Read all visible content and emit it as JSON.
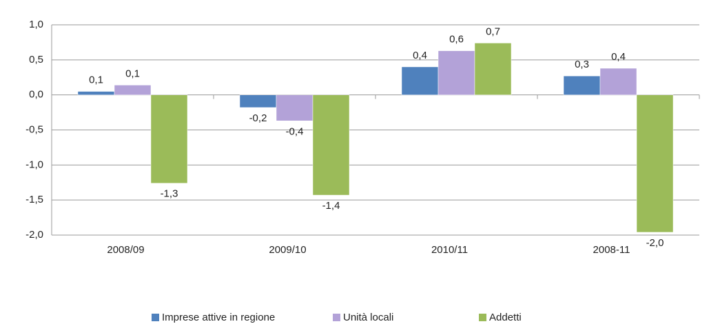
{
  "chart_data": {
    "type": "bar",
    "categories": [
      "2008/09",
      "2009/10",
      "2010/11",
      "2008-11"
    ],
    "series": [
      {
        "name": "Imprese attive in regione",
        "color": "#4f81bd",
        "values": [
          0.05,
          -0.18,
          0.4,
          0.27
        ],
        "value_labels": [
          "0,1",
          "-0,2",
          "0,4",
          "0,3"
        ]
      },
      {
        "name": "Unità locali",
        "color": "#b3a2d8",
        "values": [
          0.14,
          -0.37,
          0.63,
          0.38
        ],
        "value_labels": [
          "0,1",
          "-0,4",
          "0,6",
          "0,4"
        ]
      },
      {
        "name": "Addetti",
        "color": "#9bbb59",
        "values": [
          -1.26,
          -1.43,
          0.74,
          -1.96
        ],
        "value_labels": [
          "-1,3",
          "-1,4",
          "0,7",
          "-2,0"
        ]
      }
    ],
    "ylim": [
      -2,
      1
    ],
    "yticks": [
      {
        "value": -2,
        "label": "-2,0"
      },
      {
        "value": -1.5,
        "label": "-1,5"
      },
      {
        "value": -1,
        "label": "-1,0"
      },
      {
        "value": -0.5,
        "label": "-0,5"
      },
      {
        "value": 0,
        "label": "0,0"
      },
      {
        "value": 0.5,
        "label": "0,5"
      },
      {
        "value": 1,
        "label": "1,0"
      }
    ],
    "grid": true,
    "legend": "bottom"
  }
}
